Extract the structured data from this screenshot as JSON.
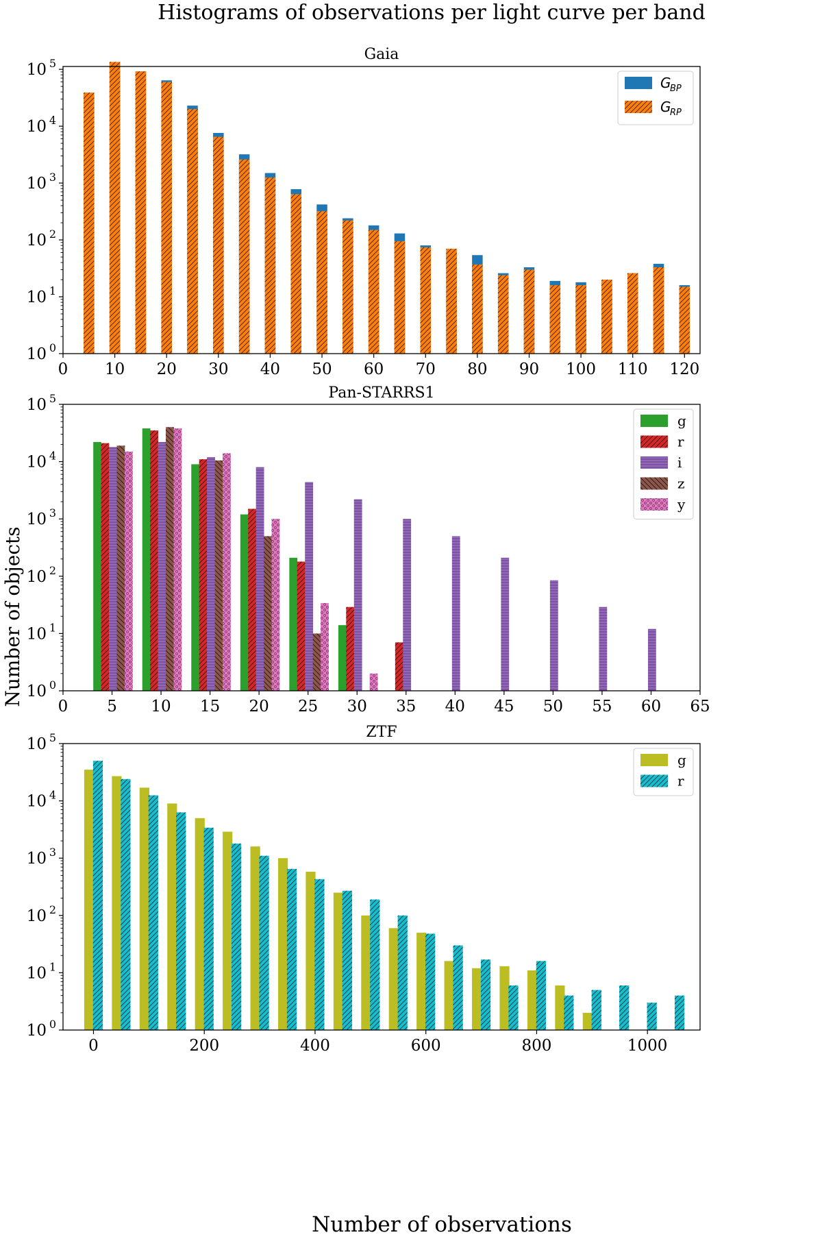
{
  "figure": {
    "title": "Histograms of observations per light curve per band",
    "ylabel": "Number of objects",
    "xlabel": "Number of observations"
  },
  "chart_data": [
    {
      "type": "bar",
      "title": "Gaia",
      "xlim": [
        0,
        123
      ],
      "ylim_log10": [
        0,
        5.05
      ],
      "xticks": [
        0,
        10,
        20,
        30,
        40,
        50,
        60,
        70,
        80,
        90,
        100,
        110,
        120
      ],
      "yticks": [
        0,
        1,
        2,
        3,
        4,
        5
      ],
      "x": [
        5,
        10,
        15,
        20,
        25,
        30,
        35,
        40,
        45,
        50,
        55,
        60,
        65,
        70,
        75,
        80,
        85,
        90,
        95,
        100,
        105,
        110,
        115,
        120
      ],
      "series": [
        {
          "name": "G_BP",
          "label_main": "G",
          "label_sub": "BP",
          "color": "#1f77b4",
          "hatch": "none",
          "values": [
            36000,
            130000,
            92000,
            64000,
            23000,
            7600,
            3200,
            1500,
            780,
            420,
            240,
            180,
            130,
            80,
            62,
            54,
            26,
            33,
            19,
            18,
            18,
            26,
            38,
            16
          ]
        },
        {
          "name": "G_RP",
          "label_main": "G",
          "label_sub": "RP",
          "color": "#ff7f0e",
          "hatch": "diag",
          "values": [
            39000,
            135000,
            92000,
            60000,
            20000,
            6500,
            2600,
            1250,
            640,
            320,
            220,
            150,
            95,
            74,
            70,
            37,
            24,
            30,
            16,
            16,
            20,
            26,
            33,
            15
          ]
        }
      ]
    },
    {
      "type": "bar",
      "title": "Pan-STARRS1",
      "xlim": [
        0,
        65
      ],
      "ylim_log10": [
        0,
        5
      ],
      "xticks": [
        0,
        5,
        10,
        15,
        20,
        25,
        30,
        35,
        40,
        45,
        50,
        55,
        60,
        65
      ],
      "yticks": [
        0,
        1,
        2,
        3,
        4,
        5
      ],
      "series": [
        {
          "name": "g",
          "label_main": "g",
          "color": "#2ca02c",
          "hatch": "none",
          "x": [
            3.5,
            8.5,
            13.5,
            18.5,
            23.5,
            28.5
          ],
          "values": [
            22000,
            38000,
            9000,
            1200,
            210,
            14
          ]
        },
        {
          "name": "r",
          "label_main": "r",
          "color": "#d62728",
          "hatch": "diag",
          "x": [
            4.3,
            9.3,
            14.3,
            19.3,
            24.3,
            29.3,
            34.3
          ],
          "values": [
            21000,
            35000,
            11000,
            1500,
            180,
            29,
            7
          ]
        },
        {
          "name": "i",
          "label_main": "i",
          "color": "#9467bd",
          "hatch": "horiz",
          "x": [
            5.1,
            10.1,
            15.1,
            20.1,
            25.1,
            30.1,
            35.1,
            40.1,
            45.1,
            50.1,
            55.1,
            60.1
          ],
          "values": [
            18000,
            22000,
            12000,
            8000,
            4400,
            2200,
            1000,
            500,
            210,
            85,
            29,
            12
          ]
        },
        {
          "name": "z",
          "label_main": "z",
          "color": "#8c564b",
          "hatch": "back",
          "x": [
            5.9,
            10.9,
            15.9,
            20.9,
            25.9
          ],
          "values": [
            19000,
            40000,
            10500,
            500,
            10
          ]
        },
        {
          "name": "y",
          "label_main": "y",
          "color": "#e377c2",
          "hatch": "dots",
          "x": [
            6.7,
            11.7,
            16.7,
            21.7,
            26.7,
            31.7
          ],
          "values": [
            15000,
            38000,
            14000,
            1000,
            34,
            2
          ]
        }
      ]
    },
    {
      "type": "bar",
      "title": "ZTF",
      "xlim": [
        -55,
        1095
      ],
      "ylim_log10": [
        0,
        5
      ],
      "xticks": [
        0,
        200,
        400,
        600,
        800,
        1000
      ],
      "yticks": [
        0,
        1,
        2,
        3,
        4,
        5
      ],
      "series": [
        {
          "name": "g",
          "label_main": "g",
          "color": "#bcbd22",
          "hatch": "none",
          "x": [
            -8,
            42,
            92,
            142,
            192,
            242,
            292,
            342,
            392,
            442,
            492,
            542,
            592,
            642,
            692,
            742,
            792,
            842,
            892
          ],
          "values": [
            35000,
            27000,
            17000,
            9000,
            5000,
            2900,
            1600,
            1000,
            580,
            250,
            100,
            60,
            50,
            16,
            12,
            13,
            11,
            6,
            2
          ]
        },
        {
          "name": "r",
          "label_main": "r",
          "color": "#17becf",
          "hatch": "diag",
          "x": [
            8,
            58,
            108,
            158,
            208,
            258,
            308,
            358,
            408,
            458,
            508,
            558,
            608,
            658,
            708,
            758,
            808,
            858,
            908,
            958,
            1008,
            1058
          ],
          "values": [
            50000,
            24000,
            12500,
            6300,
            3400,
            1800,
            1100,
            650,
            430,
            270,
            190,
            100,
            48,
            30,
            17,
            6,
            16,
            4,
            5,
            6,
            3,
            4
          ]
        }
      ]
    }
  ]
}
